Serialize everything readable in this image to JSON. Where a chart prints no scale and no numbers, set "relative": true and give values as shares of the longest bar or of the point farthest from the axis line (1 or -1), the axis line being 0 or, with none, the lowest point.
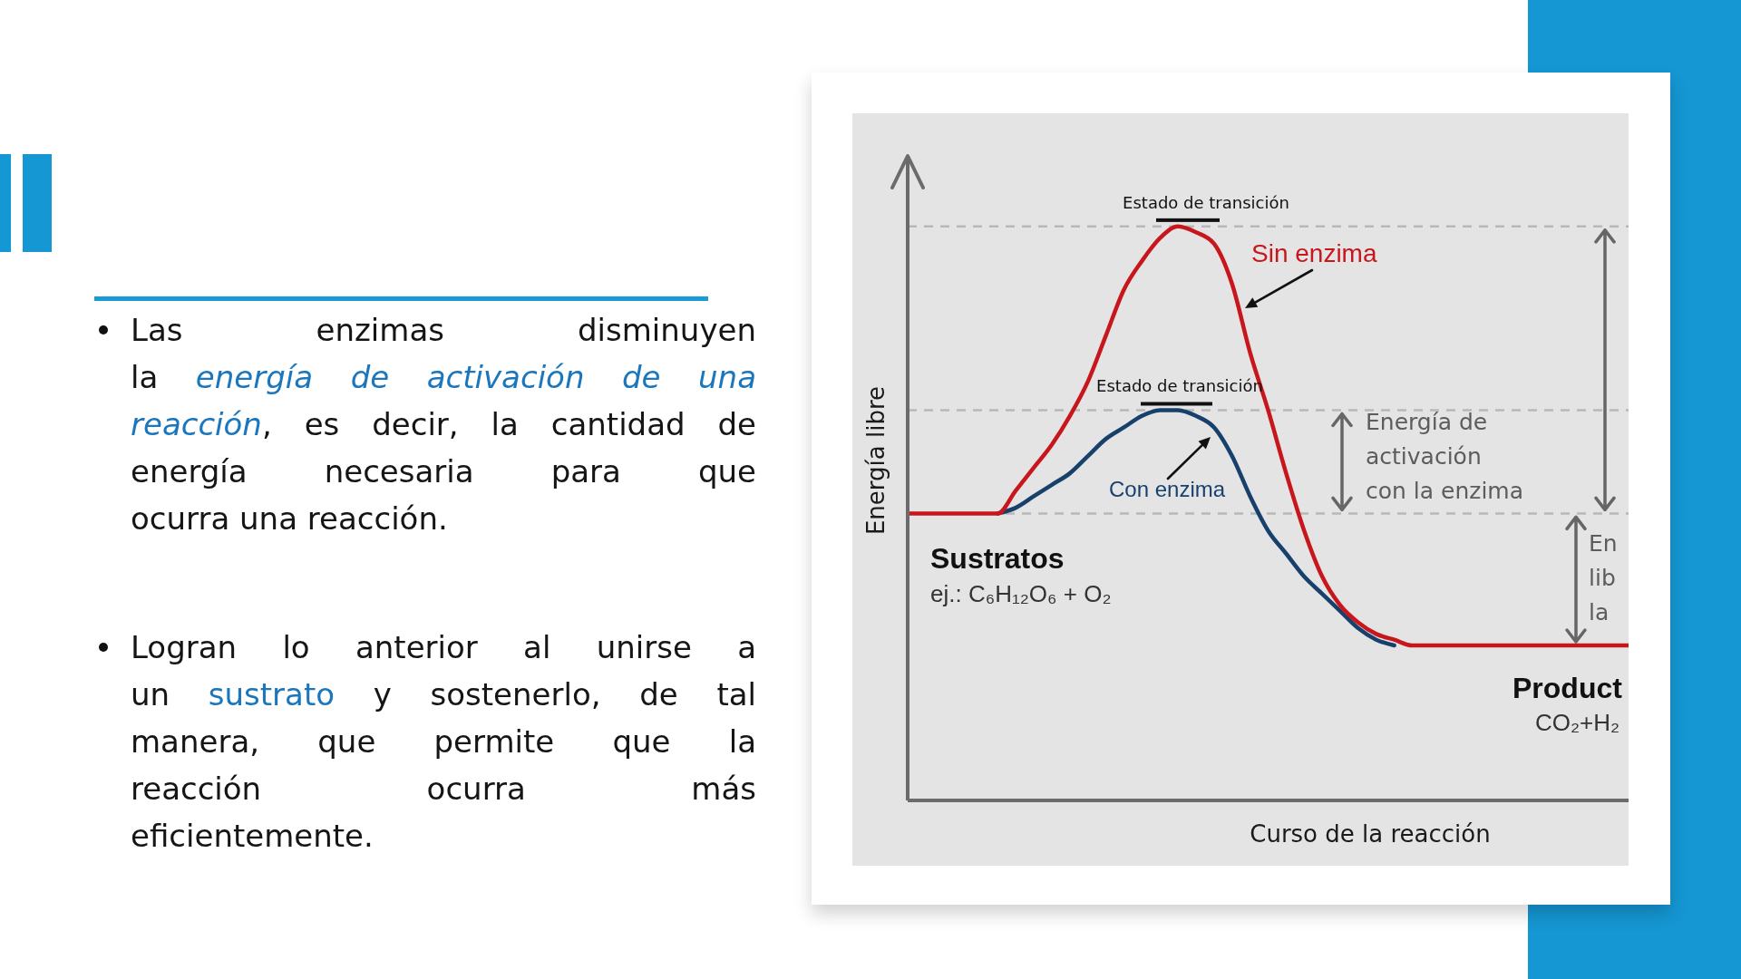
{
  "chart_data": {
    "type": "line",
    "relative": true,
    "xlabel": "Curso de la reacción",
    "ylabel": "Energía libre",
    "marker": "none",
    "line_style": "solid",
    "categories": [
      null,
      null,
      null,
      null,
      null,
      null,
      null,
      null,
      null,
      null,
      null,
      null,
      null,
      null,
      null,
      null,
      null,
      null,
      null,
      null,
      null,
      null,
      null,
      null,
      null,
      null,
      null,
      null,
      null,
      null,
      null,
      null,
      null,
      null,
      null,
      null,
      null,
      null,
      null,
      null,
      null
    ],
    "series": [
      {
        "name": "Sin enzima",
        "color": "#c8161d",
        "values": [
          0.5,
          0.5,
          0.5,
          0.5,
          0.5,
          0.5,
          0.54,
          0.58,
          0.62,
          0.67,
          0.73,
          0.81,
          0.89,
          0.94,
          0.98,
          1,
          0.99,
          0.97,
          0.9,
          0.78,
          0.68,
          0.57,
          0.47,
          0.39,
          0.34,
          0.31,
          0.29,
          0.28,
          0.27,
          0.27,
          0.27,
          0.27,
          0.27,
          0.27,
          0.27,
          0.27,
          0.27,
          0.27,
          0.27,
          0.27,
          0.27
        ]
      },
      {
        "name": "Con enzima",
        "color": "#17406d",
        "values": [
          null,
          null,
          null,
          null,
          null,
          0.5,
          0.51,
          0.53,
          0.55,
          0.57,
          0.6,
          0.63,
          0.65,
          0.67,
          0.68,
          0.68,
          0.67,
          0.65,
          0.6,
          0.53,
          0.47,
          0.43,
          0.39,
          0.36,
          0.33,
          0.3,
          0.28,
          0.27,
          null,
          null,
          null,
          null,
          null,
          null,
          null,
          null,
          null,
          null,
          null,
          null,
          null
        ]
      }
    ],
    "ref_lines": [
      {
        "axis": "y",
        "value": 1,
        "color": "#b8b8b8",
        "line_style": "dashed"
      },
      {
        "axis": "y",
        "value": 0.68,
        "color": "#b8b8b8",
        "line_style": "dashed"
      },
      {
        "axis": "y",
        "value": 0.5,
        "color": "#b8b8b8",
        "line_style": "dashed"
      }
    ],
    "annotations": [
      "Estado de transición",
      "Estado de transición",
      "Energía de\nactivación\ncon la enzima",
      "En\nlib\nla",
      "Sustratos",
      "ej.: C₆H₁₂O₆ + O₂",
      "Product",
      "CO₂+H₂",
      "Las enzimas disminuyen",
      "la",
      "energía de activación de una",
      "reacción",
      ", es decir, la cantidad de",
      "energía necesaria para que",
      "ocurra una reacción.",
      "Logran lo anterior al unirse a",
      "un",
      "sustrato",
      "y sostenerlo, de tal",
      "manera, que permite que la",
      "reacción ocurra más",
      "eficientemente."
    ]
  }
}
